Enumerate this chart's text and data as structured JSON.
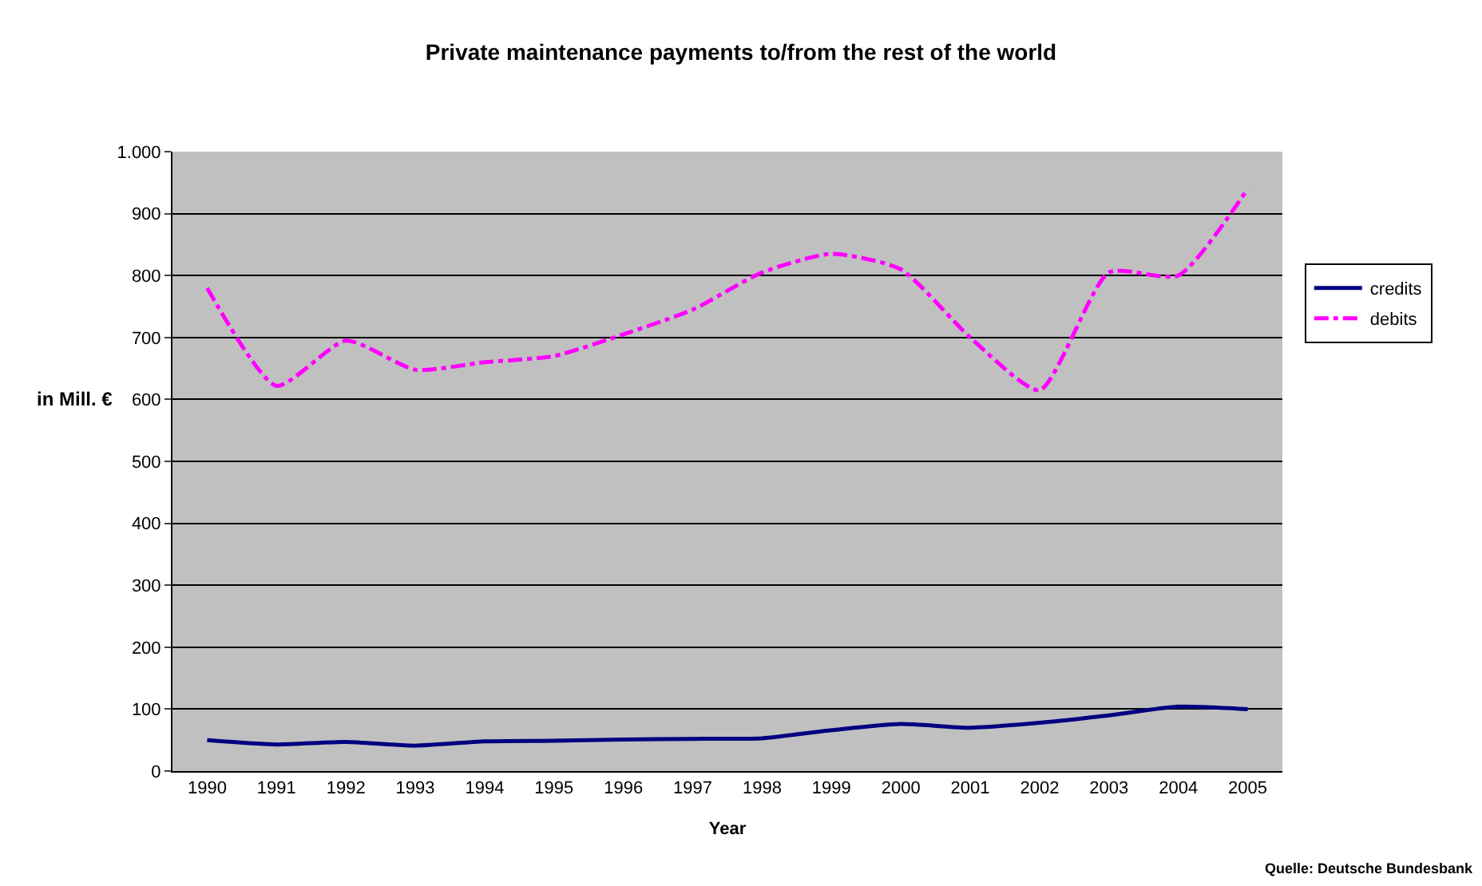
{
  "chart_data": {
    "type": "line",
    "title": "Private maintenance payments to/from the rest of the world",
    "xlabel": "Year",
    "ylabel": "in Mill. €",
    "categories": [
      "1990",
      "1991",
      "1992",
      "1993",
      "1994",
      "1995",
      "1996",
      "1997",
      "1998",
      "1999",
      "2000",
      "2001",
      "2002",
      "2003",
      "2004",
      "2005"
    ],
    "series": [
      {
        "name": "credits",
        "color": "#000080",
        "line_style": "solid",
        "values": [
          50,
          43,
          47,
          41,
          48,
          49,
          51,
          52,
          53,
          66,
          76,
          70,
          78,
          90,
          104,
          100
        ]
      },
      {
        "name": "debits",
        "color": "#ff00ff",
        "line_style": "dashed",
        "values": [
          780,
          622,
          695,
          648,
          660,
          670,
          705,
          745,
          805,
          835,
          810,
          700,
          615,
          805,
          800,
          940
        ]
      }
    ],
    "ylim": [
      0,
      1000
    ],
    "yticks": [
      0,
      100,
      200,
      300,
      400,
      500,
      600,
      700,
      800,
      900,
      {
        "value": 1000,
        "label": "1.000"
      }
    ],
    "grid": "y",
    "legend": "right",
    "marker": "none",
    "annotations": [
      "Quelle: Deutsche Bundesbank"
    ]
  }
}
